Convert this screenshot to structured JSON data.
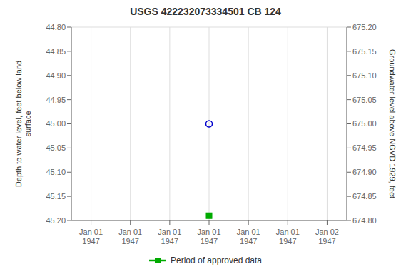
{
  "chart_data": {
    "type": "scatter",
    "title": "USGS 422232073334501 CB 124",
    "ylabel": "Depth to water level, feet below land\n surface",
    "y2label": "Groundwater level above NGVD 1929, feet",
    "categories": [
      "Jan 01\n1947",
      "Jan 01\n1947",
      "Jan 01\n1947",
      "Jan 01\n1947",
      "Jan 01\n1947",
      "Jan 01\n1947",
      "Jan 02\n1947"
    ],
    "series": [
      {
        "color": "#0000cc",
        "marker": "circle",
        "values": [
          null,
          null,
          null,
          45.0,
          null,
          null,
          null
        ]
      },
      {
        "name": "Period of approved data",
        "color": "#00aa00",
        "marker": "square",
        "values": [
          null,
          null,
          null,
          45.19,
          null,
          null,
          null
        ]
      }
    ],
    "ylim": [
      45.2,
      44.8
    ],
    "yticks": [
      {
        "value": 44.8,
        "label": "44.80"
      },
      {
        "value": 44.85,
        "label": "44.85"
      },
      {
        "value": 44.9,
        "label": "44.90"
      },
      {
        "value": 44.95,
        "label": "44.95"
      },
      {
        "value": 45.0,
        "label": "45.00"
      },
      {
        "value": 45.05,
        "label": "45.05"
      },
      {
        "value": 45.1,
        "label": "45.10"
      },
      {
        "value": 45.15,
        "label": "45.15"
      },
      {
        "value": 45.2,
        "label": "45.20"
      }
    ],
    "y2lim": [
      674.8,
      675.2
    ],
    "y2ticks": [
      {
        "value": 675.2,
        "label": "675.20"
      },
      {
        "value": 675.15,
        "label": "675.15"
      },
      {
        "value": 675.1,
        "label": "675.10"
      },
      {
        "value": 675.05,
        "label": "675.05"
      },
      {
        "value": 675.0,
        "label": "675.00"
      },
      {
        "value": 674.95,
        "label": "674.95"
      },
      {
        "value": 674.9,
        "label": "674.90"
      },
      {
        "value": 674.85,
        "label": "674.85"
      },
      {
        "value": 674.8,
        "label": "674.80"
      }
    ],
    "grid": true,
    "legend": "bottom"
  }
}
